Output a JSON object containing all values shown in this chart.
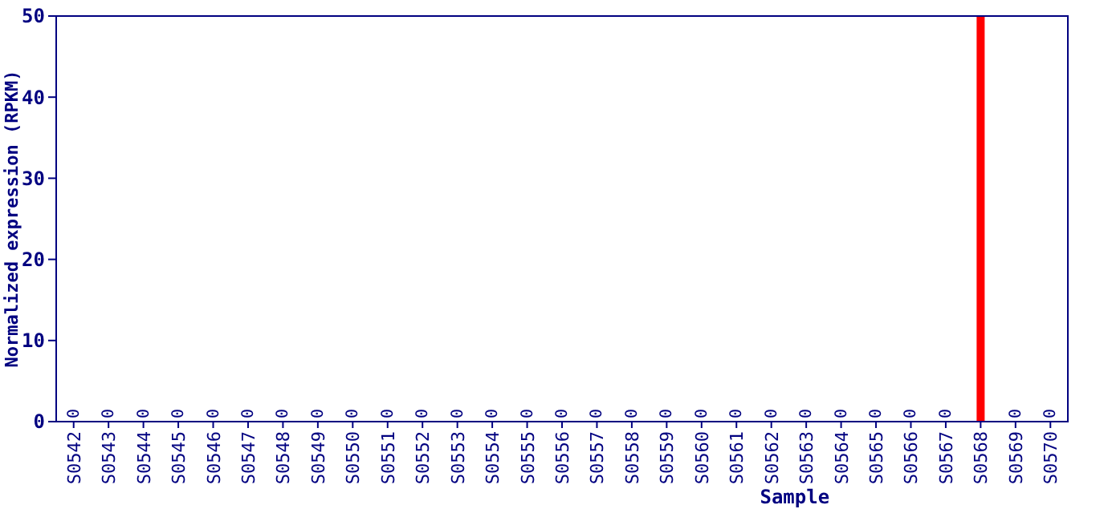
{
  "chart_data": {
    "type": "bar",
    "xlabel": "Sample",
    "ylabel": "Normalized expression (RPKM)",
    "categories": [
      "S0542",
      "S0543",
      "S0544",
      "S0545",
      "S0546",
      "S0547",
      "S0548",
      "S0549",
      "S0550",
      "S0551",
      "S0552",
      "S0553",
      "S0554",
      "S0555",
      "S0556",
      "S0557",
      "S0558",
      "S0559",
      "S0560",
      "S0561",
      "S0562",
      "S0563",
      "S0564",
      "S0565",
      "S0566",
      "S0567",
      "S0568",
      "S0569",
      "S0570"
    ],
    "values": [
      0,
      0,
      0,
      0,
      0,
      0,
      0,
      0,
      0,
      0,
      0,
      0,
      0,
      0,
      0,
      0,
      0,
      0,
      0,
      0,
      0,
      0,
      0,
      0,
      0,
      0,
      50,
      0,
      0
    ],
    "value_labels": [
      "0",
      "0",
      "0",
      "0",
      "0",
      "0",
      "0",
      "0",
      "0",
      "0",
      "0",
      "0",
      "0",
      "0",
      "0",
      "0",
      "0",
      "0",
      "0",
      "0",
      "0",
      "0",
      "0",
      "0",
      "0",
      "0",
      null,
      "0",
      "0"
    ],
    "color": "#ff0000",
    "ylim": [
      0,
      50
    ],
    "yticks": [
      0,
      10,
      20,
      30,
      40,
      50
    ],
    "grid": false
  }
}
